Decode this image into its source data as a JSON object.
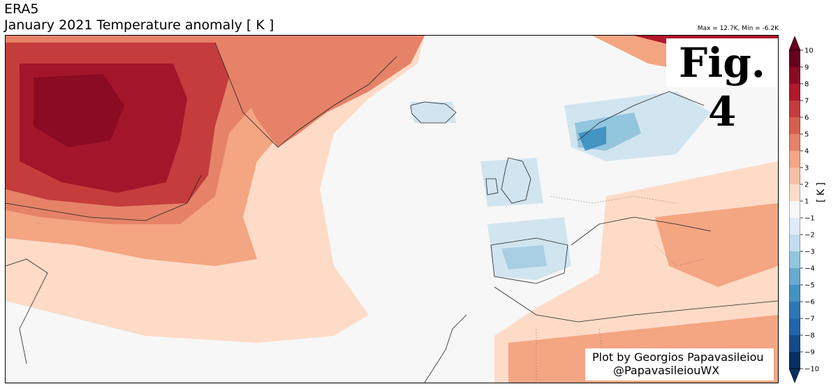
{
  "title": {
    "source": "ERA5",
    "main": "January 2021 Temperature anomaly [ K ]"
  },
  "maxmin": "Max = 12.7K, Min = -6.2K",
  "figure_label": "Fig. 4",
  "credit": {
    "line1": "Plot by Georgios Papavasileiou",
    "line2": "@PapavasileiouWX"
  },
  "colorbar": {
    "unit": "[ K ]",
    "ticks": [
      "10",
      "9",
      "8",
      "7",
      "6",
      "5",
      "4",
      "3",
      "2",
      "1",
      "−1",
      "−2",
      "−3",
      "−4",
      "−5",
      "−6",
      "−7",
      "−8",
      "−9",
      "−10"
    ],
    "colors": [
      "#67001f",
      "#8b0a24",
      "#b2182b",
      "#c43c3c",
      "#d6604d",
      "#e58268",
      "#f4a582",
      "#f7c0a4",
      "#fddbc7",
      "#f7f7f7",
      "#deebf7",
      "#c2ddf0",
      "#92c5de",
      "#6aaad1",
      "#4393c3",
      "#2e77b4",
      "#2166ac",
      "#144c8a",
      "#053061"
    ]
  },
  "palette": {
    "warm_strong": "#b2182b",
    "warm_mid": "#d6604d",
    "warm_light": "#f4a582",
    "warm_pale": "#fddbc7",
    "neutral": "#f7f7f7",
    "cool_pale": "#d1e5f0",
    "cool_mid": "#92c5de",
    "cool_strong": "#4393c3"
  }
}
